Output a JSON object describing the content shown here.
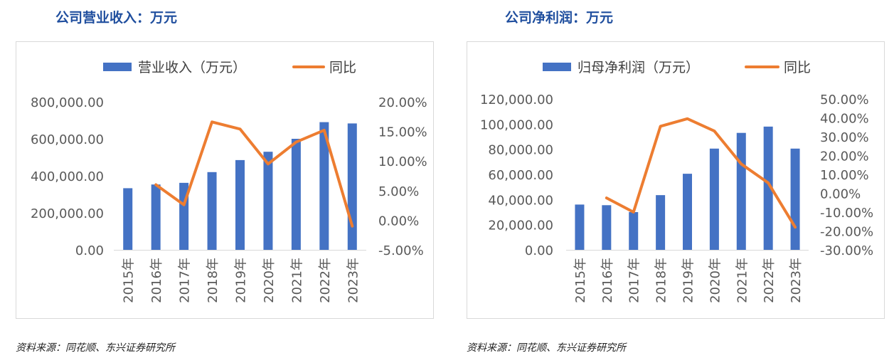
{
  "charts": [
    {
      "title": "公司营业收入：万元",
      "source": "资料来源：同花顺、东兴证券研究所",
      "colors": {
        "bar": "#4472c4",
        "line": "#ed7d31"
      },
      "legend": {
        "bar": "营业收入（万元）",
        "line": "同比"
      }
    },
    {
      "title": "公司净利润：万元",
      "source": "资料来源：同花顺、东兴证券研究所",
      "colors": {
        "bar": "#4472c4",
        "line": "#ed7d31"
      },
      "legend": {
        "bar": "归母净利润（万元）",
        "line": "同比"
      }
    }
  ],
  "chart_data": [
    {
      "type": "bar",
      "title": "公司营业收入：万元",
      "categories": [
        "2015年",
        "2016年",
        "2017年",
        "2018年",
        "2019年",
        "2020年",
        "2021年",
        "2022年",
        "2023年"
      ],
      "series": [
        {
          "name": "营业收入（万元）",
          "type": "bar",
          "axis": "left",
          "values": [
            333000,
            353000,
            362000,
            420000,
            485000,
            530000,
            600000,
            690000,
            683000
          ]
        },
        {
          "name": "同比",
          "type": "line",
          "axis": "right",
          "values": [
            null,
            6.0,
            2.6,
            16.6,
            15.4,
            9.5,
            13.2,
            15.2,
            -1.0
          ]
        }
      ],
      "y_left": {
        "min": 0,
        "max": 800000,
        "ticks": [
          "0.00",
          "200,000.00",
          "400,000.00",
          "600,000.00",
          "800,000.00"
        ]
      },
      "y_right": {
        "min": -5,
        "max": 20,
        "ticks": [
          "-5.00%",
          "0.00%",
          "5.00%",
          "10.00%",
          "15.00%",
          "20.00%"
        ]
      },
      "legend_position": "top",
      "grid": false
    },
    {
      "type": "bar",
      "title": "公司净利润：万元",
      "categories": [
        "2015年",
        "2016年",
        "2017年",
        "2018年",
        "2019年",
        "2020年",
        "2021年",
        "2022年",
        "2023年"
      ],
      "series": [
        {
          "name": "归母净利润（万元）",
          "type": "bar",
          "axis": "left",
          "values": [
            36000,
            35500,
            30000,
            43500,
            60500,
            80500,
            93000,
            98000,
            80500
          ]
        },
        {
          "name": "同比",
          "type": "line",
          "axis": "right",
          "values": [
            null,
            -2.5,
            -10.0,
            35.5,
            39.5,
            33.0,
            15.5,
            5.5,
            -18.0
          ]
        }
      ],
      "y_left": {
        "min": 0,
        "max": 120000,
        "ticks": [
          "0.00",
          "20,000.00",
          "40,000.00",
          "60,000.00",
          "80,000.00",
          "100,000.00",
          "120,000.00"
        ]
      },
      "y_right": {
        "min": -30,
        "max": 50,
        "ticks": [
          "-30.00%",
          "-20.00%",
          "-10.00%",
          "0.00%",
          "10.00%",
          "20.00%",
          "30.00%",
          "40.00%",
          "50.00%"
        ]
      },
      "legend_position": "top",
      "grid": false
    }
  ]
}
